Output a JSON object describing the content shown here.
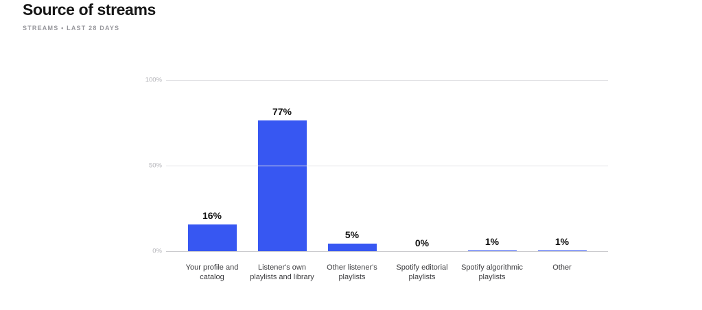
{
  "header": {
    "title": "Source of streams",
    "subtitle": "STREAMS • LAST 28 DAYS"
  },
  "colors": {
    "bar": "#3757f2",
    "gridline": "#e1e1e4",
    "baseline": "#cbcbce",
    "y_tick_label": "#b4b4b9",
    "value_label": "#111111",
    "category_label": "#3b3b3e",
    "title": "#161616",
    "subtitle": "#97979c"
  },
  "chart_data": {
    "type": "bar",
    "title": "Source of streams",
    "subtitle": "STREAMS • LAST 28 DAYS",
    "categories": [
      "Your profile and catalog",
      "Listener's own playlists and library",
      "Other listener's playlists",
      "Spotify editorial playlists",
      "Spotify algorithmic playlists",
      "Other"
    ],
    "values": [
      16,
      77,
      5,
      0,
      1,
      1
    ],
    "value_labels": [
      "16%",
      "77%",
      "5%",
      "0%",
      "1%",
      "1%"
    ],
    "xlabel": "",
    "ylabel": "",
    "ylim": [
      0,
      100
    ],
    "yticks": [
      {
        "value": 0,
        "label": "0%"
      },
      {
        "value": 50,
        "label": "50%"
      },
      {
        "value": 100,
        "label": "100%"
      }
    ],
    "grid": "horizontal",
    "legend": "none",
    "bar_color": "#3757f2"
  }
}
